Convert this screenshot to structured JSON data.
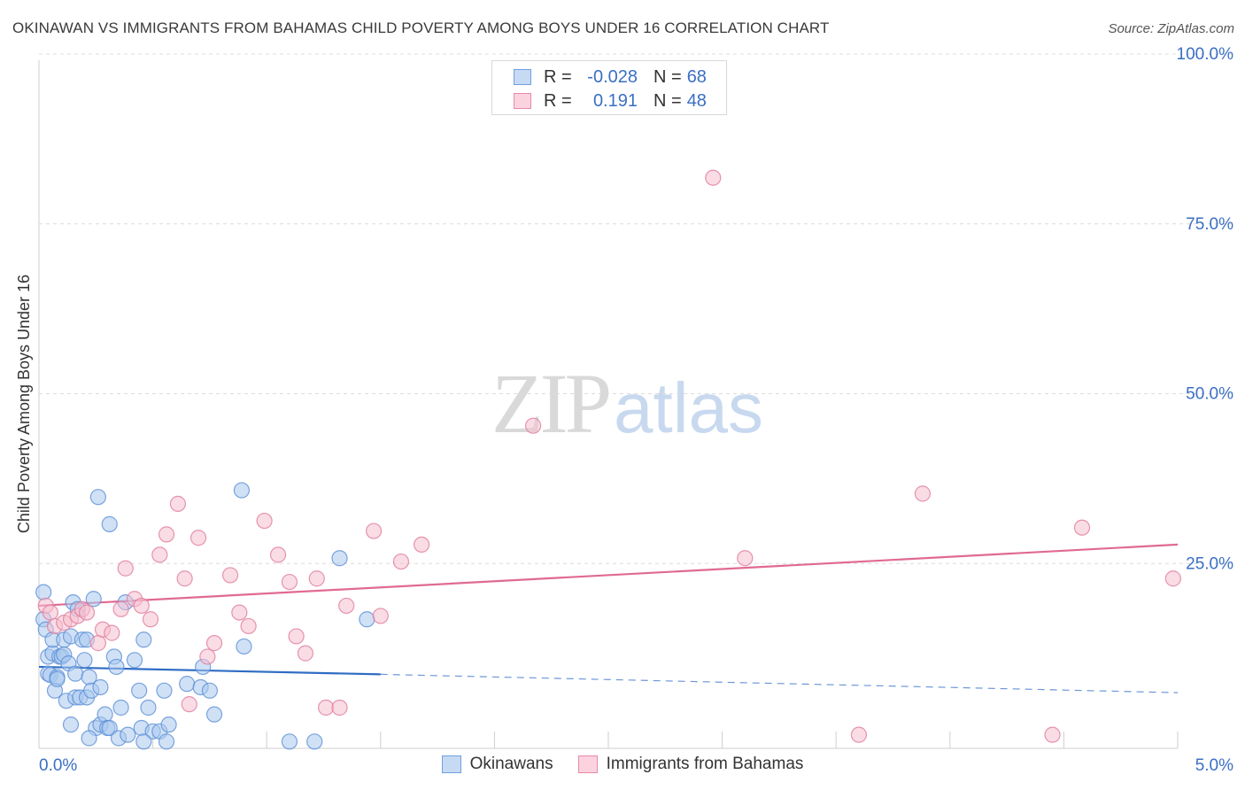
{
  "header": {
    "title": "OKINAWAN VS IMMIGRANTS FROM BAHAMAS CHILD POVERTY AMONG BOYS UNDER 16 CORRELATION CHART",
    "source": "Source: ZipAtlas.com"
  },
  "watermark": {
    "zip": "ZIP",
    "atlas": "atlas"
  },
  "legend": {
    "r_label": "R =",
    "n_label": "N =",
    "rows": [
      {
        "r": "-0.028",
        "n": "68"
      },
      {
        "r": "0.191",
        "n": "48"
      }
    ]
  },
  "colors": {
    "blue_fill": "#a9c8ef",
    "blue_stroke": "#5b8fd6",
    "blue_line": "#2f6cc4",
    "pink_fill": "#f5bfd0",
    "pink_stroke": "#e07c9c",
    "pink_line": "#e06a92",
    "axis_text": "#3a6fc4",
    "grid": "#dcdcdc"
  },
  "chart_data": {
    "type": "scatter",
    "title": "OKINAWAN VS IMMIGRANTS FROM BAHAMAS CHILD POVERTY AMONG BOYS UNDER 16 CORRELATION CHART",
    "xlabel": "",
    "ylabel": "Child Poverty Among Boys Under 16",
    "xlim": [
      0,
      5
    ],
    "ylim": [
      0,
      100
    ],
    "x_tick_labels": [
      {
        "value": 0,
        "label": "0.0%"
      },
      {
        "value": 5,
        "label": "5.0%"
      }
    ],
    "y_tick_labels": [
      {
        "value": 25,
        "label": "25.0%"
      },
      {
        "value": 50,
        "label": "50.0%"
      },
      {
        "value": 75,
        "label": "75.0%"
      },
      {
        "value": 100,
        "label": "100.0%"
      }
    ],
    "series": [
      {
        "name": "Okinawans",
        "color": "blue",
        "r": -0.028,
        "n": 68,
        "trend": {
          "x0": 0,
          "y0": 12.0,
          "x1": 1.5,
          "y1": 10.9,
          "x_end": 5,
          "y_end": 8.2
        },
        "points": [
          [
            0.02,
            23.0
          ],
          [
            0.02,
            19.0
          ],
          [
            0.03,
            17.5
          ],
          [
            0.04,
            13.5
          ],
          [
            0.04,
            11.0
          ],
          [
            0.05,
            10.8
          ],
          [
            0.06,
            14.0
          ],
          [
            0.06,
            16.0
          ],
          [
            0.07,
            8.5
          ],
          [
            0.08,
            10.5
          ],
          [
            0.08,
            10.2
          ],
          [
            0.09,
            13.5
          ],
          [
            0.1,
            13.5
          ],
          [
            0.11,
            13.8
          ],
          [
            0.11,
            16.0
          ],
          [
            0.12,
            7.0
          ],
          [
            0.13,
            12.5
          ],
          [
            0.14,
            16.5
          ],
          [
            0.14,
            3.5
          ],
          [
            0.15,
            21.5
          ],
          [
            0.16,
            7.5
          ],
          [
            0.16,
            11.0
          ],
          [
            0.17,
            20.5
          ],
          [
            0.18,
            7.5
          ],
          [
            0.19,
            16.0
          ],
          [
            0.2,
            13.0
          ],
          [
            0.21,
            16.0
          ],
          [
            0.21,
            7.5
          ],
          [
            0.22,
            10.5
          ],
          [
            0.23,
            8.5
          ],
          [
            0.24,
            22.0
          ],
          [
            0.25,
            3.0
          ],
          [
            0.26,
            37.0
          ],
          [
            0.27,
            9.0
          ],
          [
            0.27,
            3.5
          ],
          [
            0.29,
            5.0
          ],
          [
            0.3,
            3.0
          ],
          [
            0.31,
            33.0
          ],
          [
            0.31,
            3.0
          ],
          [
            0.33,
            13.5
          ],
          [
            0.34,
            12.0
          ],
          [
            0.35,
            1.5
          ],
          [
            0.36,
            6.0
          ],
          [
            0.38,
            21.5
          ],
          [
            0.39,
            2.0
          ],
          [
            0.42,
            13.0
          ],
          [
            0.44,
            8.5
          ],
          [
            0.45,
            3.0
          ],
          [
            0.46,
            16.0
          ],
          [
            0.48,
            6.0
          ],
          [
            0.5,
            2.5
          ],
          [
            0.53,
            2.5
          ],
          [
            0.55,
            8.5
          ],
          [
            0.56,
            1.0
          ],
          [
            0.57,
            3.5
          ],
          [
            0.65,
            9.5
          ],
          [
            0.71,
            9.0
          ],
          [
            0.72,
            12.0
          ],
          [
            0.75,
            8.5
          ],
          [
            0.77,
            5.0
          ],
          [
            0.89,
            38.0
          ],
          [
            0.9,
            15.0
          ],
          [
            1.1,
            1.0
          ],
          [
            1.21,
            1.0
          ],
          [
            1.32,
            28.0
          ],
          [
            1.44,
            19.0
          ],
          [
            0.22,
            1.5
          ],
          [
            0.46,
            1.0
          ]
        ]
      },
      {
        "name": "Immigrants from Bahamas",
        "color": "pink",
        "r": 0.191,
        "n": 48,
        "trend": {
          "x0": 0,
          "y0": 21.0,
          "x1": 5,
          "y1": 30.0
        },
        "points": [
          [
            0.03,
            21.0
          ],
          [
            0.05,
            20.0
          ],
          [
            0.07,
            18.0
          ],
          [
            0.11,
            18.5
          ],
          [
            0.14,
            19.0
          ],
          [
            0.17,
            19.5
          ],
          [
            0.19,
            20.5
          ],
          [
            0.21,
            20.0
          ],
          [
            0.26,
            15.5
          ],
          [
            0.28,
            17.5
          ],
          [
            0.32,
            17.0
          ],
          [
            0.36,
            20.5
          ],
          [
            0.38,
            26.5
          ],
          [
            0.42,
            22.0
          ],
          [
            0.45,
            21.0
          ],
          [
            0.49,
            19.0
          ],
          [
            0.53,
            28.5
          ],
          [
            0.56,
            31.5
          ],
          [
            0.61,
            36.0
          ],
          [
            0.64,
            25.0
          ],
          [
            0.66,
            6.5
          ],
          [
            0.7,
            31.0
          ],
          [
            0.74,
            13.5
          ],
          [
            0.77,
            15.5
          ],
          [
            0.84,
            25.5
          ],
          [
            0.88,
            20.0
          ],
          [
            0.92,
            18.0
          ],
          [
            0.99,
            33.5
          ],
          [
            1.05,
            28.5
          ],
          [
            1.1,
            24.5
          ],
          [
            1.13,
            16.5
          ],
          [
            1.17,
            14.0
          ],
          [
            1.22,
            25.0
          ],
          [
            1.26,
            6.0
          ],
          [
            1.32,
            6.0
          ],
          [
            1.35,
            21.0
          ],
          [
            1.47,
            32.0
          ],
          [
            1.5,
            19.5
          ],
          [
            1.59,
            27.5
          ],
          [
            1.68,
            30.0
          ],
          [
            2.17,
            47.5
          ],
          [
            2.96,
            84.0
          ],
          [
            3.1,
            28.0
          ],
          [
            3.6,
            2.0
          ],
          [
            3.88,
            37.5
          ],
          [
            4.45,
            2.0
          ],
          [
            4.58,
            32.5
          ],
          [
            4.98,
            25.0
          ]
        ]
      }
    ]
  }
}
